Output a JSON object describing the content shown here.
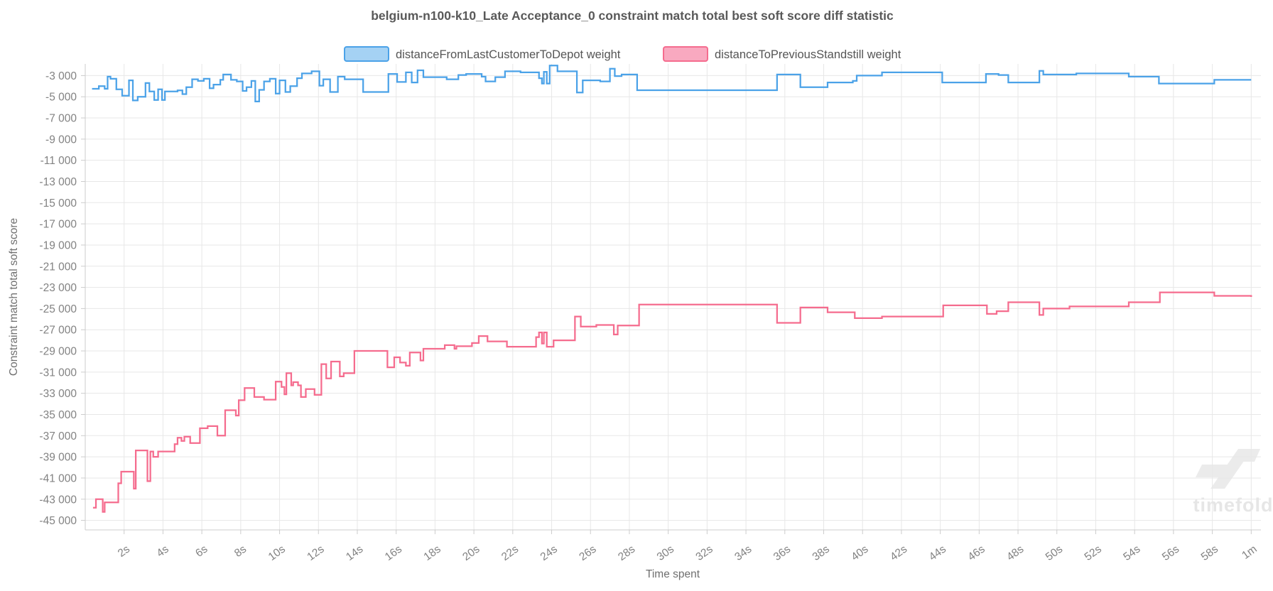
{
  "chart_data": {
    "type": "line",
    "step": true,
    "title": "belgium-n100-k10_Late Acceptance_0 constraint match total best soft score diff statistic",
    "xlabel": "Time spent",
    "ylabel": "Constraint match total soft score",
    "watermark": "timefold",
    "grid": true,
    "legend_position": "top",
    "xlim": [
      0,
      60.5
    ],
    "ylim": [
      -45900,
      -1900
    ],
    "x_ticks": [
      {
        "t": 2,
        "label": "2s"
      },
      {
        "t": 4,
        "label": "4s"
      },
      {
        "t": 6,
        "label": "6s"
      },
      {
        "t": 8,
        "label": "8s"
      },
      {
        "t": 10,
        "label": "10s"
      },
      {
        "t": 12,
        "label": "12s"
      },
      {
        "t": 14,
        "label": "14s"
      },
      {
        "t": 16,
        "label": "16s"
      },
      {
        "t": 18,
        "label": "18s"
      },
      {
        "t": 20,
        "label": "20s"
      },
      {
        "t": 22,
        "label": "22s"
      },
      {
        "t": 24,
        "label": "24s"
      },
      {
        "t": 26,
        "label": "26s"
      },
      {
        "t": 28,
        "label": "28s"
      },
      {
        "t": 30,
        "label": "30s"
      },
      {
        "t": 32,
        "label": "32s"
      },
      {
        "t": 34,
        "label": "34s"
      },
      {
        "t": 36,
        "label": "36s"
      },
      {
        "t": 38,
        "label": "38s"
      },
      {
        "t": 40,
        "label": "40s"
      },
      {
        "t": 42,
        "label": "42s"
      },
      {
        "t": 44,
        "label": "44s"
      },
      {
        "t": 46,
        "label": "46s"
      },
      {
        "t": 48,
        "label": "48s"
      },
      {
        "t": 50,
        "label": "50s"
      },
      {
        "t": 52,
        "label": "52s"
      },
      {
        "t": 54,
        "label": "54s"
      },
      {
        "t": 56,
        "label": "56s"
      },
      {
        "t": 58,
        "label": "58s"
      },
      {
        "t": 60,
        "label": "1m"
      }
    ],
    "y_ticks": [
      {
        "v": -3000,
        "label": "-3 000"
      },
      {
        "v": -5000,
        "label": "-5 000"
      },
      {
        "v": -7000,
        "label": "-7 000"
      },
      {
        "v": -9000,
        "label": "-9 000"
      },
      {
        "v": -11000,
        "label": "-11 000"
      },
      {
        "v": -13000,
        "label": "-13 000"
      },
      {
        "v": -15000,
        "label": "-15 000"
      },
      {
        "v": -17000,
        "label": "-17 000"
      },
      {
        "v": -19000,
        "label": "-19 000"
      },
      {
        "v": -21000,
        "label": "-21 000"
      },
      {
        "v": -23000,
        "label": "-23 000"
      },
      {
        "v": -25000,
        "label": "-25 000"
      },
      {
        "v": -27000,
        "label": "-27 000"
      },
      {
        "v": -29000,
        "label": "-29 000"
      },
      {
        "v": -31000,
        "label": "-31 000"
      },
      {
        "v": -33000,
        "label": "-33 000"
      },
      {
        "v": -35000,
        "label": "-35 000"
      },
      {
        "v": -37000,
        "label": "-37 000"
      },
      {
        "v": -39000,
        "label": "-39 000"
      },
      {
        "v": -41000,
        "label": "-41 000"
      },
      {
        "v": -43000,
        "label": "-43 000"
      },
      {
        "v": -45000,
        "label": "-45 000"
      }
    ],
    "colors": {
      "grid": "#e7e7e7",
      "axis": "#cccccc",
      "blue_line": "#4ba2e8",
      "blue_fill": "#a5d2f4",
      "pink_line": "#f56c8e",
      "pink_fill": "#f9a9c0",
      "watermark": "#ebebeb"
    },
    "series": [
      {
        "name": "distanceFromLastCustomerToDepot weight",
        "line_color": "#4ba2e8",
        "fill_color": "#a5d2f4",
        "points": [
          [
            0.35,
            -4250
          ],
          [
            0.7,
            -4000
          ],
          [
            1.0,
            -4250
          ],
          [
            1.15,
            -3100
          ],
          [
            1.3,
            -3300
          ],
          [
            1.6,
            -4300
          ],
          [
            1.9,
            -4900
          ],
          [
            2.25,
            -3450
          ],
          [
            2.45,
            -5350
          ],
          [
            2.7,
            -5000
          ],
          [
            3.1,
            -3700
          ],
          [
            3.3,
            -4500
          ],
          [
            3.55,
            -5300
          ],
          [
            3.75,
            -4300
          ],
          [
            3.95,
            -5300
          ],
          [
            4.1,
            -4500
          ],
          [
            4.75,
            -4400
          ],
          [
            5.0,
            -4750
          ],
          [
            5.2,
            -4100
          ],
          [
            5.5,
            -3350
          ],
          [
            5.8,
            -3500
          ],
          [
            6.1,
            -3300
          ],
          [
            6.4,
            -4200
          ],
          [
            6.6,
            -3850
          ],
          [
            6.95,
            -3400
          ],
          [
            7.1,
            -2900
          ],
          [
            7.5,
            -3400
          ],
          [
            7.8,
            -3550
          ],
          [
            8.1,
            -4450
          ],
          [
            8.3,
            -4100
          ],
          [
            8.55,
            -3500
          ],
          [
            8.75,
            -5450
          ],
          [
            8.95,
            -4350
          ],
          [
            9.2,
            -3550
          ],
          [
            9.5,
            -3300
          ],
          [
            9.8,
            -4700
          ],
          [
            10.0,
            -3450
          ],
          [
            10.3,
            -4550
          ],
          [
            10.55,
            -4000
          ],
          [
            10.9,
            -3250
          ],
          [
            11.15,
            -2800
          ],
          [
            11.65,
            -2600
          ],
          [
            12.05,
            -3950
          ],
          [
            12.25,
            -3350
          ],
          [
            12.6,
            -4550
          ],
          [
            13.0,
            -3100
          ],
          [
            13.35,
            -3350
          ],
          [
            14.3,
            -4550
          ],
          [
            15.6,
            -2850
          ],
          [
            16.05,
            -3600
          ],
          [
            16.5,
            -2700
          ],
          [
            16.8,
            -3650
          ],
          [
            17.1,
            -2500
          ],
          [
            17.4,
            -3150
          ],
          [
            18.6,
            -3350
          ],
          [
            19.2,
            -2950
          ],
          [
            19.6,
            -2850
          ],
          [
            20.4,
            -3100
          ],
          [
            20.6,
            -3550
          ],
          [
            21.1,
            -3150
          ],
          [
            21.6,
            -2600
          ],
          [
            22.4,
            -2700
          ],
          [
            23.35,
            -3250
          ],
          [
            23.5,
            -3750
          ],
          [
            23.6,
            -2650
          ],
          [
            23.75,
            -3750
          ],
          [
            23.9,
            -2050
          ],
          [
            24.3,
            -2600
          ],
          [
            25.3,
            -4600
          ],
          [
            25.6,
            -3450
          ],
          [
            26.5,
            -3550
          ],
          [
            27.0,
            -2350
          ],
          [
            27.25,
            -3050
          ],
          [
            27.6,
            -2900
          ],
          [
            28.4,
            -4380
          ],
          [
            35.6,
            -2900
          ],
          [
            36.8,
            -4100
          ],
          [
            38.2,
            -3650
          ],
          [
            39.5,
            -3500
          ],
          [
            39.7,
            -3000
          ],
          [
            41.0,
            -2700
          ],
          [
            44.1,
            -3650
          ],
          [
            46.35,
            -2850
          ],
          [
            47.0,
            -2950
          ],
          [
            47.5,
            -3650
          ],
          [
            49.1,
            -2550
          ],
          [
            49.3,
            -2900
          ],
          [
            51.0,
            -2800
          ],
          [
            53.7,
            -3100
          ],
          [
            55.25,
            -3750
          ],
          [
            58.1,
            -3400
          ],
          [
            60,
            -3400
          ]
        ]
      },
      {
        "name": "distanceToPreviousStandstill weight",
        "line_color": "#f56c8e",
        "fill_color": "#f9a9c0",
        "points": [
          [
            0.4,
            -43800
          ],
          [
            0.55,
            -43000
          ],
          [
            0.9,
            -44200
          ],
          [
            1.0,
            -43300
          ],
          [
            1.7,
            -41500
          ],
          [
            1.85,
            -40400
          ],
          [
            2.5,
            -42000
          ],
          [
            2.6,
            -38400
          ],
          [
            3.2,
            -41300
          ],
          [
            3.35,
            -38500
          ],
          [
            3.5,
            -39000
          ],
          [
            3.75,
            -38500
          ],
          [
            4.6,
            -37800
          ],
          [
            4.75,
            -37200
          ],
          [
            4.95,
            -37500
          ],
          [
            5.1,
            -37100
          ],
          [
            5.4,
            -37700
          ],
          [
            5.9,
            -36300
          ],
          [
            6.3,
            -36100
          ],
          [
            6.8,
            -37000
          ],
          [
            7.2,
            -34600
          ],
          [
            7.75,
            -35100
          ],
          [
            7.9,
            -33650
          ],
          [
            8.2,
            -32500
          ],
          [
            8.7,
            -33350
          ],
          [
            9.2,
            -33600
          ],
          [
            9.8,
            -31900
          ],
          [
            10.1,
            -32400
          ],
          [
            10.25,
            -33100
          ],
          [
            10.35,
            -31100
          ],
          [
            10.6,
            -32250
          ],
          [
            10.7,
            -31950
          ],
          [
            10.95,
            -32250
          ],
          [
            11.1,
            -33350
          ],
          [
            11.35,
            -32600
          ],
          [
            11.8,
            -33150
          ],
          [
            12.15,
            -30250
          ],
          [
            12.4,
            -31600
          ],
          [
            12.65,
            -30000
          ],
          [
            13.1,
            -31400
          ],
          [
            13.3,
            -31100
          ],
          [
            13.85,
            -29000
          ],
          [
            15.55,
            -30550
          ],
          [
            15.9,
            -29600
          ],
          [
            16.2,
            -30100
          ],
          [
            16.5,
            -30400
          ],
          [
            16.7,
            -29150
          ],
          [
            17.25,
            -29900
          ],
          [
            17.4,
            -28800
          ],
          [
            18.5,
            -28450
          ],
          [
            19.0,
            -28800
          ],
          [
            19.1,
            -28550
          ],
          [
            19.9,
            -28250
          ],
          [
            20.25,
            -27600
          ],
          [
            20.7,
            -28100
          ],
          [
            21.7,
            -28600
          ],
          [
            23.2,
            -27700
          ],
          [
            23.35,
            -27250
          ],
          [
            23.5,
            -28300
          ],
          [
            23.6,
            -27250
          ],
          [
            23.75,
            -28600
          ],
          [
            24.1,
            -28000
          ],
          [
            25.2,
            -25750
          ],
          [
            25.5,
            -26700
          ],
          [
            26.3,
            -26550
          ],
          [
            27.2,
            -27450
          ],
          [
            27.4,
            -26600
          ],
          [
            28.5,
            -24620
          ],
          [
            35.6,
            -26350
          ],
          [
            36.8,
            -24900
          ],
          [
            38.2,
            -25350
          ],
          [
            39.6,
            -25900
          ],
          [
            41.0,
            -25750
          ],
          [
            44.15,
            -24700
          ],
          [
            46.4,
            -25500
          ],
          [
            46.9,
            -25250
          ],
          [
            47.5,
            -24400
          ],
          [
            49.1,
            -25600
          ],
          [
            49.3,
            -25000
          ],
          [
            50.65,
            -24800
          ],
          [
            53.7,
            -24400
          ],
          [
            55.3,
            -23470
          ],
          [
            58.1,
            -23800
          ],
          [
            60,
            -23900
          ]
        ]
      }
    ]
  }
}
